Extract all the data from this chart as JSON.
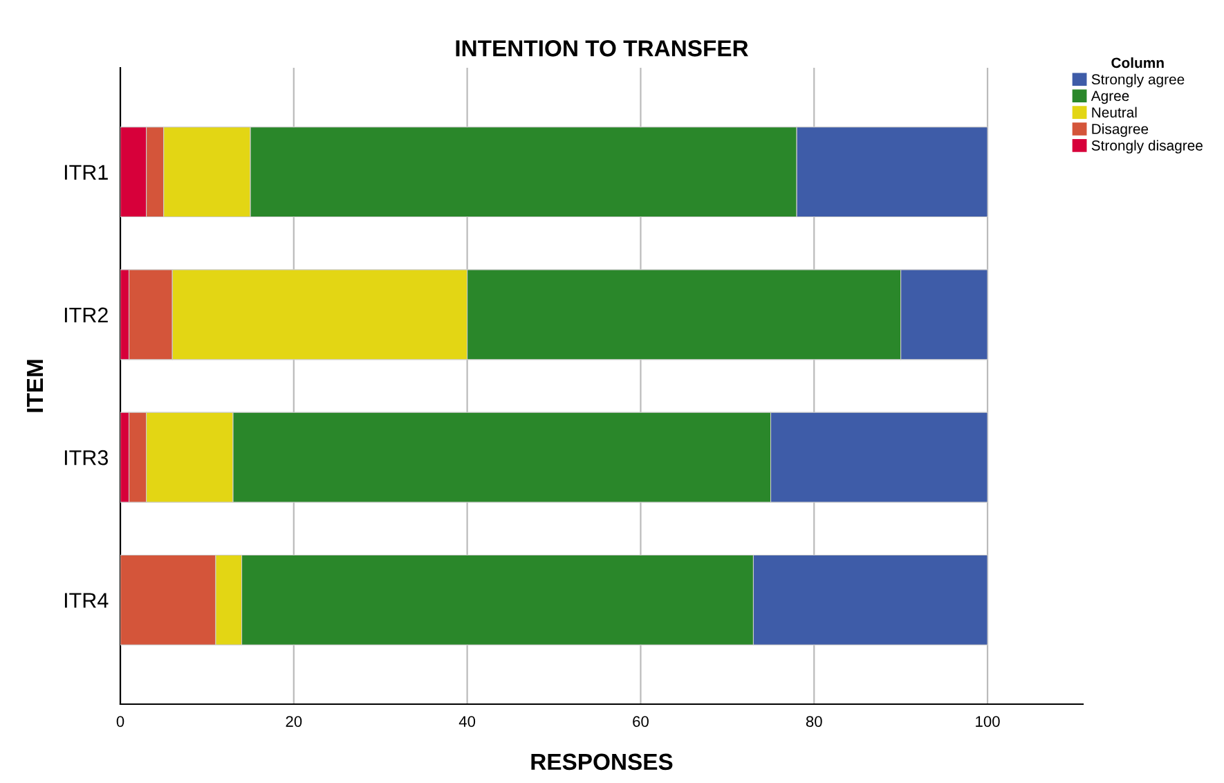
{
  "chart_data": {
    "type": "bar",
    "orientation": "horizontal",
    "stacked": true,
    "title": "INTENTION TO TRANSFER",
    "xlabel": "RESPONSES",
    "ylabel": "ITEM",
    "legend_title": "Column",
    "categories": [
      "ITR1",
      "ITR2",
      "ITR3",
      "ITR4"
    ],
    "series": [
      {
        "name": "Strongly disagree",
        "color": "#d7003a",
        "values": [
          3,
          1,
          1,
          0
        ]
      },
      {
        "name": "Disagree",
        "color": "#d4553a",
        "values": [
          2,
          5,
          2,
          11
        ]
      },
      {
        "name": "Neutral",
        "color": "#e3d614",
        "values": [
          10,
          34,
          10,
          3
        ]
      },
      {
        "name": "Agree",
        "color": "#2a872a",
        "values": [
          63,
          50,
          62,
          59
        ]
      },
      {
        "name": "Strongly agree",
        "color": "#3e5ca8",
        "values": [
          22,
          10,
          25,
          27
        ]
      }
    ],
    "xlim": [
      0,
      111
    ],
    "xticks": [
      0,
      20,
      40,
      60,
      80,
      100
    ],
    "grid": "x",
    "legend": "top right"
  }
}
